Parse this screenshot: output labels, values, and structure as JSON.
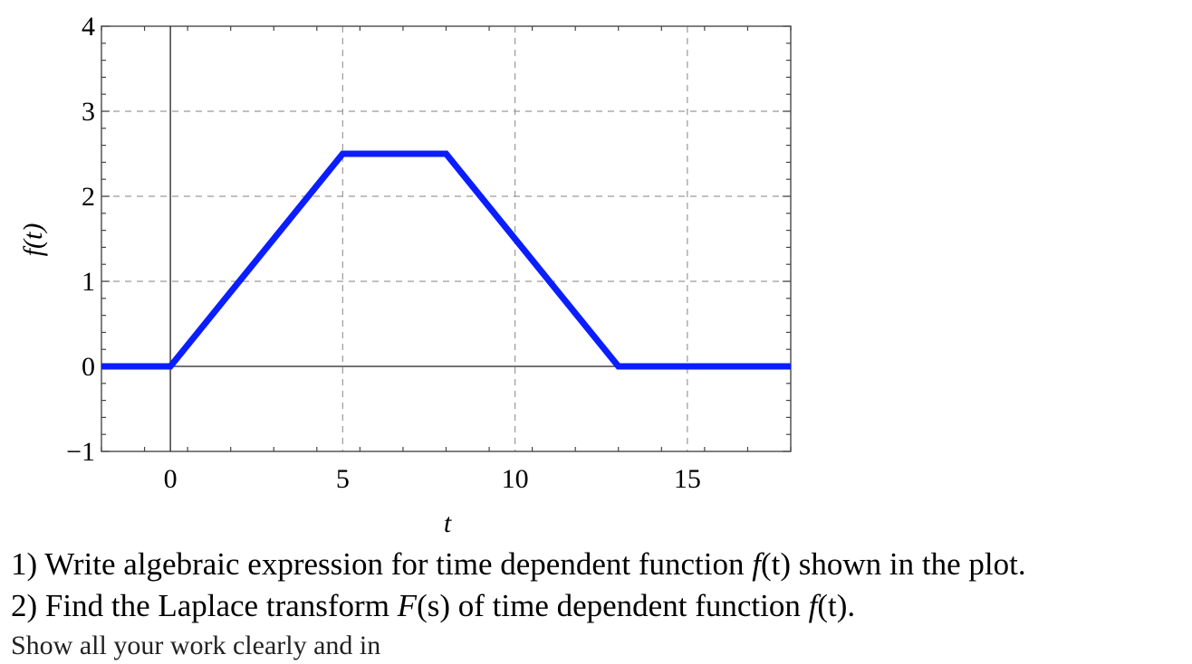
{
  "chart_data": {
    "type": "line",
    "title": "",
    "xlabel": "t",
    "ylabel": "f(t)",
    "xlim": [
      -2,
      18
    ],
    "ylim": [
      -1,
      4
    ],
    "xticks": [
      0,
      5,
      10,
      15
    ],
    "yticks": [
      -1,
      0,
      1,
      2,
      3,
      4
    ],
    "xtick_labels": [
      "0",
      "5",
      "10",
      "15"
    ],
    "ytick_labels": [
      "−1",
      "0",
      "1",
      "2",
      "3",
      "4"
    ],
    "grid": true,
    "grid_style": "dashed",
    "series": [
      {
        "name": "f(t)",
        "color": "#0a1eff",
        "x": [
          -2,
          0,
          5,
          8,
          13,
          18
        ],
        "y": [
          0,
          0,
          2.5,
          2.5,
          0,
          0
        ]
      }
    ]
  },
  "questions": {
    "q1": {
      "prefix": "1) Write algebraic expression for time dependent function ",
      "func": "f",
      "arg": "(t)",
      "suffix": " shown in the plot."
    },
    "q2": {
      "prefix": "2) Find the Laplace transform ",
      "F": "F",
      "s": "(s)",
      "middle": " of time dependent function ",
      "func": "f",
      "arg": "(t)",
      "suffix": "."
    },
    "q3": {
      "text": "Show all your work clearly and in"
    }
  }
}
